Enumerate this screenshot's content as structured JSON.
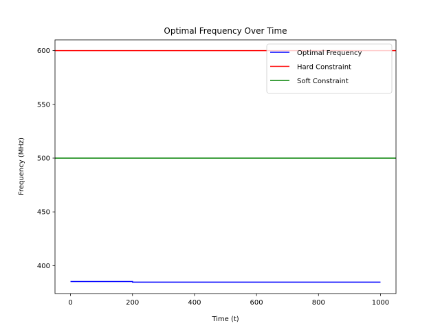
{
  "chart_data": {
    "type": "line",
    "title": "Optimal Frequency Over Time",
    "xlabel": "Time (t)",
    "ylabel": "Frequency (MHz)",
    "xlim": [
      -50,
      1050
    ],
    "ylim": [
      374,
      610
    ],
    "xticks": [
      0,
      200,
      400,
      600,
      800,
      1000
    ],
    "yticks": [
      400,
      450,
      500,
      550,
      600
    ],
    "grid": false,
    "legend_position": "top-right",
    "series": [
      {
        "name": "Optimal Frequency",
        "color": "#0000ff",
        "x": [
          0,
          200,
          200,
          1000
        ],
        "y": [
          385.2,
          385.2,
          384.6,
          384.6
        ]
      },
      {
        "name": "Hard Constraint",
        "color": "#ff0000",
        "hline": 600
      },
      {
        "name": "Soft Constraint",
        "color": "#008000",
        "hline": 500
      }
    ]
  }
}
